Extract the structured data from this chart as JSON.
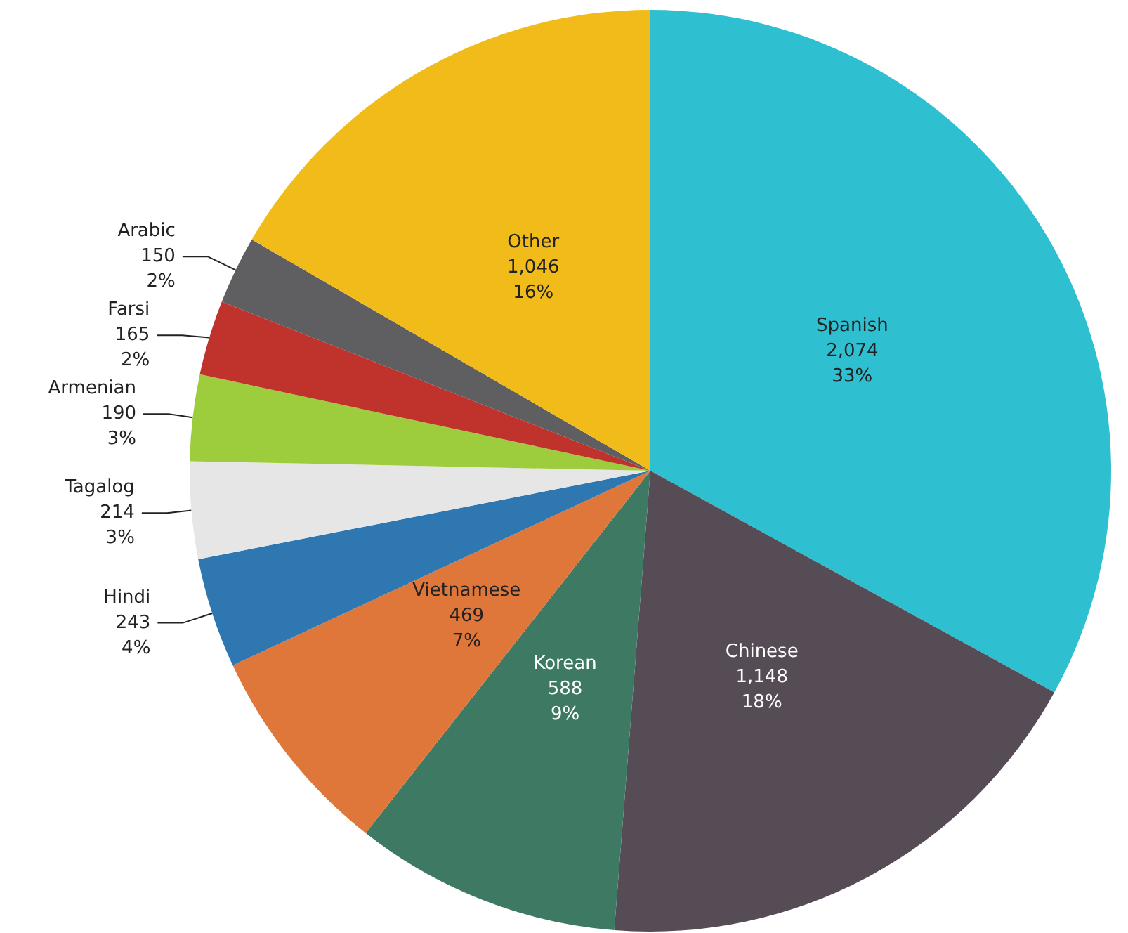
{
  "chart_data": {
    "type": "pie",
    "categories": [
      "Spanish",
      "Chinese",
      "Korean",
      "Vietnamese",
      "Hindi",
      "Tagalog",
      "Armenian",
      "Farsi",
      "Arabic",
      "Other"
    ],
    "values": [
      2074,
      1148,
      588,
      469,
      243,
      214,
      190,
      165,
      150,
      1046
    ],
    "colors": [
      "#2ebfd1",
      "#554c55",
      "#3e7a63",
      "#e0773a",
      "#2f77b0",
      "#e6e6e6",
      "#9dcc3c",
      "#c0322c",
      "#5f5f62",
      "#f1bc1a"
    ],
    "value_labels": [
      "2,074\n33%",
      "1,148\n18%",
      "588\n9%",
      "469\n7%",
      "243\n4%",
      "214\n3%",
      "190\n3%",
      "165\n2%",
      "150\n2%",
      "1,046\n16%"
    ],
    "legend": false
  }
}
